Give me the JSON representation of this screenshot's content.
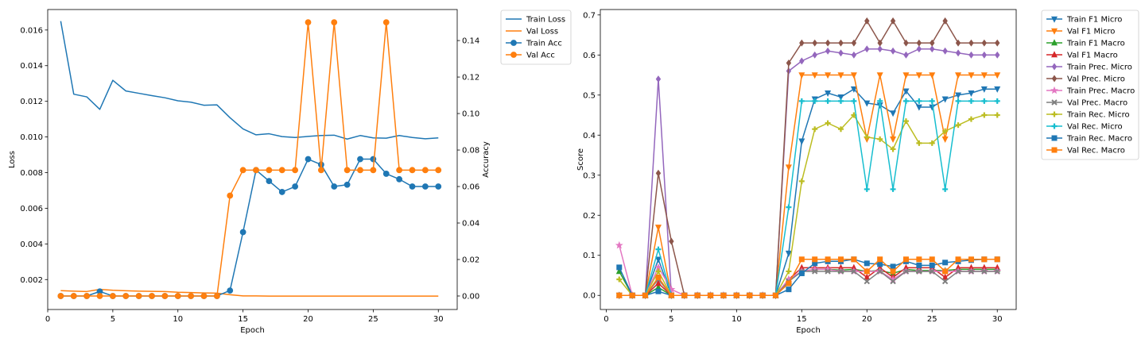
{
  "chart_data": [
    {
      "type": "line",
      "title": "",
      "xlabel": "Epoch",
      "ylabel": "Loss",
      "ylabel_right": "Accuracy",
      "xlim": [
        0,
        31.45
      ],
      "ylim": [
        0.00032,
        0.01715
      ],
      "ylim_right": [
        -0.0074,
        0.157
      ],
      "x_ticks": [
        "0",
        "5",
        "10",
        "15",
        "20",
        "25",
        "30"
      ],
      "x_tick_values": [
        0,
        5,
        10,
        15,
        20,
        25,
        30
      ],
      "y_ticks": [
        "0.002",
        "0.004",
        "0.006",
        "0.008",
        "0.010",
        "0.012",
        "0.014",
        "0.016"
      ],
      "y_tick_values": [
        0.002,
        0.004,
        0.006,
        0.008,
        0.01,
        0.012,
        0.014,
        0.016
      ],
      "y_ticks_right": [
        "0.00",
        "0.02",
        "0.04",
        "0.06",
        "0.08",
        "0.10",
        "0.12",
        "0.14"
      ],
      "y_tick_values_right": [
        0,
        0.02,
        0.04,
        0.06,
        0.08,
        0.1,
        0.12,
        0.14
      ],
      "legend_position": "outside-top-right",
      "x": [
        1,
        2,
        3,
        4,
        5,
        6,
        7,
        8,
        9,
        10,
        11,
        12,
        13,
        14,
        15,
        16,
        17,
        18,
        19,
        20,
        21,
        22,
        23,
        24,
        25,
        26,
        27,
        28,
        29,
        30
      ],
      "series": [
        {
          "name": "Train Loss",
          "axis": "left",
          "color": "#1f77b4",
          "marker": "none",
          "values": [
            0.0165,
            0.0124,
            0.01225,
            0.01155,
            0.01318,
            0.01258,
            0.01245,
            0.01232,
            0.0122,
            0.01203,
            0.01195,
            0.01178,
            0.0118,
            0.01108,
            0.01045,
            0.01012,
            0.01018,
            0.01002,
            0.00997,
            0.01003,
            0.01008,
            0.0101,
            0.00988,
            0.01008,
            0.00995,
            0.00993,
            0.01008,
            0.00997,
            0.0099,
            0.00995
          ]
        },
        {
          "name": "Val Loss",
          "axis": "left",
          "color": "#ff7f0e",
          "marker": "none",
          "values": [
            0.00138,
            0.00135,
            0.00133,
            0.00145,
            0.0014,
            0.00137,
            0.00135,
            0.00134,
            0.00133,
            0.00129,
            0.00127,
            0.00125,
            0.00124,
            0.00115,
            0.00108,
            0.00108,
            0.00107,
            0.00107,
            0.00107,
            0.00107,
            0.00107,
            0.00107,
            0.00107,
            0.00107,
            0.00107,
            0.00107,
            0.00107,
            0.00107,
            0.00107,
            0.00107
          ]
        },
        {
          "name": "Train Acc",
          "axis": "right",
          "color": "#1f77b4",
          "marker": "circle",
          "values": [
            0,
            0,
            0,
            0.0025,
            0,
            0,
            0,
            0,
            0,
            0,
            0,
            0,
            0,
            0.003,
            0.035,
            0.069,
            0.063,
            0.057,
            0.06,
            0.075,
            0.072,
            0.06,
            0.061,
            0.075,
            0.075,
            0.067,
            0.064,
            0.06,
            0.06,
            0.06
          ]
        },
        {
          "name": "Val Acc",
          "axis": "right",
          "color": "#ff7f0e",
          "marker": "circle",
          "values": [
            0,
            0,
            0,
            0,
            0,
            0,
            0,
            0,
            0,
            0,
            0,
            0,
            0,
            0.055,
            0.069,
            0.069,
            0.069,
            0.069,
            0.069,
            0.15,
            0.069,
            0.15,
            0.069,
            0.069,
            0.069,
            0.15,
            0.069,
            0.069,
            0.069,
            0.069
          ]
        }
      ]
    },
    {
      "type": "line",
      "title": "",
      "xlabel": "Epoch",
      "ylabel": "Score",
      "xlim": [
        -0.45,
        31.45
      ],
      "ylim": [
        -0.0352,
        0.7135
      ],
      "x_ticks": [
        "0",
        "5",
        "10",
        "15",
        "20",
        "25",
        "30"
      ],
      "x_tick_values": [
        0,
        5,
        10,
        15,
        20,
        25,
        30
      ],
      "y_ticks": [
        "0.0",
        "0.1",
        "0.2",
        "0.3",
        "0.4",
        "0.5",
        "0.6",
        "0.7"
      ],
      "y_tick_values": [
        0,
        0.1,
        0.2,
        0.3,
        0.4,
        0.5,
        0.6,
        0.7
      ],
      "legend_position": "outside-top-right",
      "x": [
        1,
        2,
        3,
        4,
        5,
        6,
        7,
        8,
        9,
        10,
        11,
        12,
        13,
        14,
        15,
        16,
        17,
        18,
        19,
        20,
        21,
        22,
        23,
        24,
        25,
        26,
        27,
        28,
        29,
        30
      ],
      "series": [
        {
          "name": "Train F1 Micro",
          "color": "#1f77b4",
          "marker": "tri_down",
          "values": [
            0,
            0,
            0,
            0.09,
            0,
            0,
            0,
            0,
            0,
            0,
            0,
            0,
            0,
            0.105,
            0.385,
            0.49,
            0.505,
            0.495,
            0.515,
            0.48,
            0.475,
            0.455,
            0.51,
            0.47,
            0.47,
            0.49,
            0.5,
            0.505,
            0.515,
            0.515
          ]
        },
        {
          "name": "Val F1 Micro",
          "color": "#ff7f0e",
          "marker": "tri_down",
          "values": [
            0,
            0,
            0,
            0.17,
            0,
            0,
            0,
            0,
            0,
            0,
            0,
            0,
            0,
            0.32,
            0.55,
            0.55,
            0.55,
            0.55,
            0.55,
            0.39,
            0.55,
            0.39,
            0.55,
            0.55,
            0.55,
            0.39,
            0.55,
            0.55,
            0.55,
            0.55
          ]
        },
        {
          "name": "Train F1 Macro",
          "color": "#2ca02c",
          "marker": "tri_up",
          "values": [
            0.06,
            0,
            0,
            0.02,
            0,
            0,
            0,
            0,
            0,
            0,
            0,
            0,
            0,
            0.035,
            0.06,
            0.065,
            0.065,
            0.063,
            0.065,
            0.06,
            0.062,
            0.055,
            0.065,
            0.062,
            0.062,
            0.062,
            0.065,
            0.065,
            0.065,
            0.065
          ]
        },
        {
          "name": "Val F1 Macro",
          "color": "#d62728",
          "marker": "tri_up",
          "values": [
            0,
            0,
            0,
            0.03,
            0,
            0,
            0,
            0,
            0,
            0,
            0,
            0,
            0,
            0.04,
            0.069,
            0.069,
            0.069,
            0.069,
            0.069,
            0.045,
            0.069,
            0.045,
            0.069,
            0.069,
            0.069,
            0.045,
            0.069,
            0.069,
            0.069,
            0.069
          ]
        },
        {
          "name": "Train Prec. Micro",
          "color": "#9467bd",
          "marker": "diamond",
          "values": [
            0,
            0,
            0,
            0.54,
            0,
            0,
            0,
            0,
            0,
            0,
            0,
            0,
            0,
            0.56,
            0.585,
            0.6,
            0.61,
            0.605,
            0.6,
            0.615,
            0.615,
            0.61,
            0.6,
            0.615,
            0.615,
            0.61,
            0.605,
            0.6,
            0.6,
            0.6
          ]
        },
        {
          "name": "Val Prec. Micro",
          "color": "#8c564b",
          "marker": "diamond",
          "values": [
            0,
            0,
            0,
            0.305,
            0.135,
            0,
            0,
            0,
            0,
            0,
            0,
            0,
            0,
            0.58,
            0.63,
            0.63,
            0.63,
            0.63,
            0.63,
            0.685,
            0.63,
            0.685,
            0.63,
            0.63,
            0.63,
            0.685,
            0.63,
            0.63,
            0.63,
            0.63
          ]
        },
        {
          "name": "Train Prec. Macro",
          "color": "#e377c2",
          "marker": "star",
          "values": [
            0.125,
            0,
            0,
            0.07,
            0.015,
            0,
            0,
            0,
            0,
            0,
            0,
            0,
            0,
            0.04,
            0.06,
            0.065,
            0.065,
            0.06,
            0.06,
            0.06,
            0.06,
            0.04,
            0.06,
            0.06,
            0.06,
            0.06,
            0.06,
            0.06,
            0.06,
            0.06
          ]
        },
        {
          "name": "Val Prec. Macro",
          "color": "#7f7f7f",
          "marker": "x",
          "values": [
            0,
            0,
            0,
            0.04,
            0,
            0,
            0,
            0,
            0,
            0,
            0,
            0,
            0,
            0.035,
            0.06,
            0.06,
            0.06,
            0.06,
            0.06,
            0.035,
            0.06,
            0.035,
            0.06,
            0.06,
            0.06,
            0.035,
            0.06,
            0.06,
            0.06,
            0.06
          ]
        },
        {
          "name": "Train Rec. Micro",
          "color": "#bcbd22",
          "marker": "plus",
          "values": [
            0.04,
            0,
            0,
            0.06,
            0,
            0,
            0,
            0,
            0,
            0,
            0,
            0,
            0,
            0.06,
            0.285,
            0.415,
            0.43,
            0.415,
            0.45,
            0.395,
            0.39,
            0.365,
            0.435,
            0.38,
            0.38,
            0.41,
            0.425,
            0.44,
            0.45,
            0.45
          ]
        },
        {
          "name": "Val Rec. Micro",
          "color": "#17becf",
          "marker": "plus",
          "values": [
            0,
            0,
            0,
            0.115,
            0,
            0,
            0,
            0,
            0,
            0,
            0,
            0,
            0,
            0.22,
            0.485,
            0.485,
            0.485,
            0.485,
            0.485,
            0.265,
            0.485,
            0.265,
            0.485,
            0.485,
            0.485,
            0.265,
            0.485,
            0.485,
            0.485,
            0.485
          ]
        },
        {
          "name": "Train Rec. Macro",
          "color": "#1f77b4",
          "marker": "square",
          "values": [
            0.07,
            0,
            0,
            0.01,
            0,
            0,
            0,
            0,
            0,
            0,
            0,
            0,
            0,
            0.015,
            0.055,
            0.08,
            0.085,
            0.085,
            0.09,
            0.08,
            0.078,
            0.072,
            0.085,
            0.075,
            0.075,
            0.082,
            0.085,
            0.088,
            0.09,
            0.09
          ]
        },
        {
          "name": "Val Rec. Macro",
          "color": "#ff7f0e",
          "marker": "square",
          "values": [
            0,
            0,
            0,
            0.045,
            0,
            0,
            0,
            0,
            0,
            0,
            0,
            0,
            0,
            0.03,
            0.09,
            0.09,
            0.09,
            0.09,
            0.09,
            0.06,
            0.09,
            0.06,
            0.09,
            0.09,
            0.09,
            0.06,
            0.09,
            0.09,
            0.09,
            0.09
          ]
        }
      ]
    }
  ]
}
